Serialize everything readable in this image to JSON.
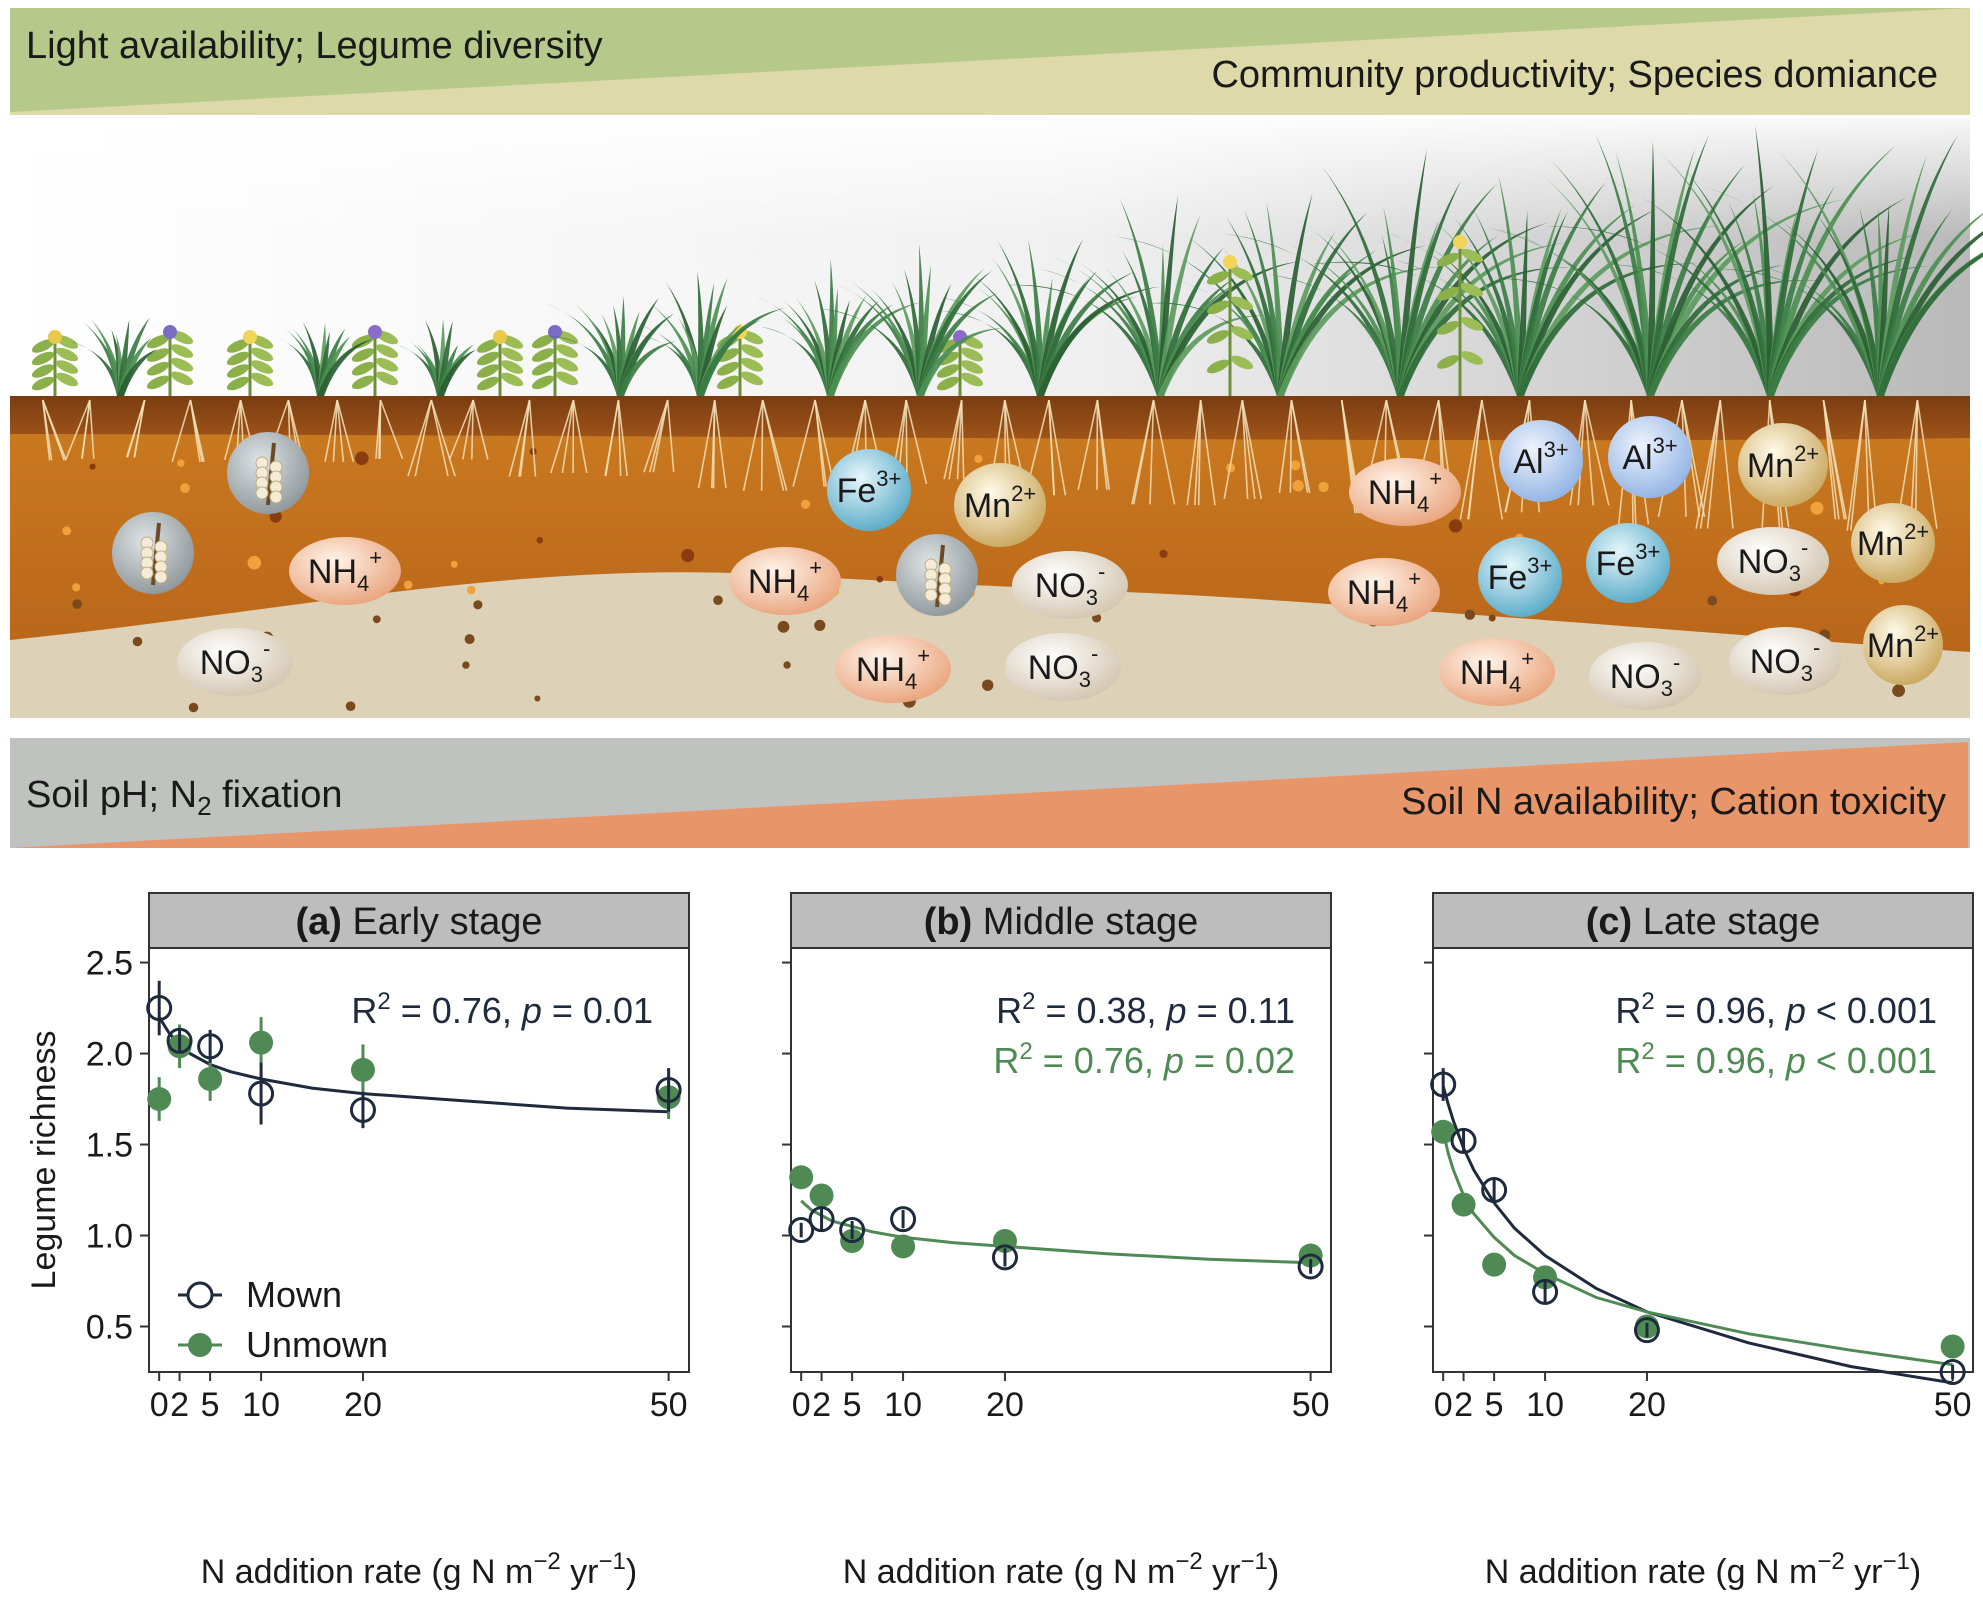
{
  "gradients": {
    "top_left_text": "Light availability; Legume diversity",
    "top_right_text": "Community productivity; Species domiance",
    "bottom_left_text_prefix": "Soil pH; N",
    "bottom_left_text_sub": "2",
    "bottom_left_text_suffix": " fixation",
    "bottom_right_text": "Soil N availability; Cation toxicity",
    "colors": {
      "top_green": "#b6c98a",
      "top_beige": "#ddd9a8",
      "bottom_gray": "#bfc2bf",
      "bottom_orange": "#e9956a"
    }
  },
  "ions": [
    {
      "base": "NH",
      "sub": "4",
      "sup": "+",
      "type": "nh4"
    },
    {
      "base": "NO",
      "sub": "3",
      "sup": "-",
      "type": "no3"
    },
    {
      "base": "Fe",
      "sub": "",
      "sup": "3+",
      "type": "fe"
    },
    {
      "base": "Mn",
      "sub": "",
      "sup": "2+",
      "type": "mn"
    },
    {
      "base": "NH",
      "sub": "4",
      "sup": "+",
      "type": "nh4"
    },
    {
      "base": "NO",
      "sub": "3",
      "sup": "-",
      "type": "no3"
    },
    {
      "base": "NH",
      "sub": "4",
      "sup": "+",
      "type": "nh4"
    },
    {
      "base": "NO",
      "sub": "3",
      "sup": "-",
      "type": "no3"
    },
    {
      "base": "NH",
      "sub": "4",
      "sup": "+",
      "type": "nh4"
    },
    {
      "base": "Al",
      "sub": "",
      "sup": "3+",
      "type": "al"
    },
    {
      "base": "Al",
      "sub": "",
      "sup": "3+",
      "type": "al"
    },
    {
      "base": "Mn",
      "sub": "",
      "sup": "2+",
      "type": "mn"
    },
    {
      "base": "NH",
      "sub": "4",
      "sup": "+",
      "type": "nh4"
    },
    {
      "base": "Fe",
      "sub": "",
      "sup": "3+",
      "type": "fe"
    },
    {
      "base": "Fe",
      "sub": "",
      "sup": "3+",
      "type": "fe"
    },
    {
      "base": "NO",
      "sub": "3",
      "sup": "-",
      "type": "no3"
    },
    {
      "base": "Mn",
      "sub": "",
      "sup": "2+",
      "type": "mn"
    },
    {
      "base": "NH",
      "sub": "4",
      "sup": "+",
      "type": "nh4"
    },
    {
      "base": "NO",
      "sub": "3",
      "sup": "-",
      "type": "no3"
    },
    {
      "base": "NO",
      "sub": "3",
      "sup": "-",
      "type": "no3"
    },
    {
      "base": "Mn",
      "sub": "",
      "sup": "2+",
      "type": "mn"
    }
  ],
  "chart_data": {
    "type": "scatter",
    "ylabel": "Legume richness",
    "xlabel_prefix": "N addition rate (g N m",
    "xlabel_sup1": "−2",
    "xlabel_mid": " yr",
    "xlabel_sup2": "−1",
    "xlabel_suffix": ")",
    "xlim": [
      -1,
      52
    ],
    "ylim": [
      0.25,
      2.58
    ],
    "x_ticks": [
      0,
      2,
      5,
      10,
      20,
      50
    ],
    "x_tick_labels": [
      "0",
      "2",
      "5",
      "10",
      "20",
      "50"
    ],
    "y_ticks": [
      0.5,
      1.0,
      1.5,
      2.0,
      2.5
    ],
    "y_tick_labels": [
      "0.5",
      "1.0",
      "1.5",
      "2.0",
      "2.5"
    ],
    "grid": false,
    "colors": {
      "mown": "#1f2a3d",
      "unmown": "#4f8a55"
    },
    "legend": {
      "placement": "bottom-left",
      "entries": [
        "Mown",
        "Unmown"
      ]
    },
    "panels": [
      {
        "letter": "(a)",
        "title": "Early stage",
        "stats": [
          {
            "series": "mown",
            "r2_prefix": "R",
            "r2_sup": "2",
            "r2_value": " = 0.76, ",
            "p_label": "p",
            "p_value": " = 0.01"
          }
        ],
        "series": [
          {
            "key": "mown",
            "x": [
              0,
              2,
              5,
              10,
              20,
              50
            ],
            "y": [
              2.25,
              2.07,
              2.04,
              1.78,
              1.69,
              1.8
            ],
            "err": [
              0.15,
              0.06,
              0.09,
              0.17,
              0.1,
              0.12
            ]
          },
          {
            "key": "unmown",
            "x": [
              0,
              2,
              5,
              10,
              20,
              50
            ],
            "y": [
              1.75,
              2.04,
              1.86,
              2.06,
              1.91,
              1.76
            ],
            "err": [
              0.12,
              0.12,
              0.12,
              0.14,
              0.14,
              0.12
            ]
          }
        ],
        "fits": [
          {
            "key": "mown",
            "x": [
              0,
              1,
              2,
              3,
              5,
              7,
              10,
              15,
              20,
              30,
              40,
              50
            ],
            "y": [
              2.2,
              2.11,
              2.05,
              2.0,
              1.94,
              1.9,
              1.86,
              1.81,
              1.78,
              1.74,
              1.7,
              1.68
            ]
          }
        ]
      },
      {
        "letter": "(b)",
        "title": "Middle stage",
        "stats": [
          {
            "series": "mown",
            "r2_prefix": "R",
            "r2_sup": "2",
            "r2_value": " = 0.38, ",
            "p_label": "p",
            "p_value": " = 0.11"
          },
          {
            "series": "unmown",
            "r2_prefix": "R",
            "r2_sup": "2",
            "r2_value": " = 0.76, ",
            "p_label": "p",
            "p_value": " = 0.02"
          }
        ],
        "series": [
          {
            "key": "mown",
            "x": [
              0,
              2,
              5,
              10,
              20,
              50
            ],
            "y": [
              1.03,
              1.09,
              1.03,
              1.09,
              0.88,
              0.83
            ],
            "err": [
              0.04,
              0.06,
              0.05,
              0.05,
              0.05,
              0.04
            ]
          },
          {
            "key": "unmown",
            "x": [
              0,
              2,
              5,
              10,
              20,
              50
            ],
            "y": [
              1.32,
              1.22,
              0.97,
              0.94,
              0.97,
              0.89
            ],
            "err": [
              0.03,
              0.04,
              0.04,
              0.04,
              0.03,
              0.03
            ]
          }
        ],
        "fits": [
          {
            "key": "unmown",
            "x": [
              0,
              1,
              2,
              3,
              5,
              7,
              10,
              15,
              20,
              30,
              40,
              50
            ],
            "y": [
              1.19,
              1.14,
              1.11,
              1.08,
              1.05,
              1.02,
              0.99,
              0.96,
              0.94,
              0.9,
              0.87,
              0.85
            ]
          }
        ]
      },
      {
        "letter": "(c)",
        "title": "Late stage",
        "stats": [
          {
            "series": "mown",
            "r2_prefix": "R",
            "r2_sup": "2",
            "r2_value": " = 0.96, ",
            "p_label": "p",
            "p_value": " < 0.001"
          },
          {
            "series": "unmown",
            "r2_prefix": "R",
            "r2_sup": "2",
            "r2_value": " = 0.96, ",
            "p_label": "p",
            "p_value": " < 0.001"
          }
        ],
        "series": [
          {
            "key": "mown",
            "x": [
              0,
              2,
              5,
              10,
              20,
              50
            ],
            "y": [
              1.83,
              1.52,
              1.25,
              0.69,
              0.48,
              0.25
            ],
            "err": [
              0.09,
              0.06,
              0.07,
              0.06,
              0.04,
              0.04
            ]
          },
          {
            "key": "unmown",
            "x": [
              0,
              2,
              5,
              10,
              20,
              50
            ],
            "y": [
              1.57,
              1.17,
              0.84,
              0.77,
              0.5,
              0.39
            ],
            "err": [
              0.03,
              0.04,
              0.03,
              0.04,
              0.03,
              0.03
            ]
          }
        ],
        "fits": [
          {
            "key": "mown",
            "x": [
              0,
              0.5,
              1,
              2,
              3,
              5,
              7,
              10,
              15,
              20,
              30,
              40,
              50
            ],
            "y": [
              1.82,
              1.72,
              1.63,
              1.48,
              1.36,
              1.18,
              1.04,
              0.89,
              0.71,
              0.58,
              0.41,
              0.28,
              0.19
            ]
          },
          {
            "key": "unmown",
            "x": [
              0,
              0.5,
              1,
              2,
              3,
              5,
              7,
              10,
              15,
              20,
              30,
              40,
              50
            ],
            "y": [
              1.57,
              1.45,
              1.36,
              1.22,
              1.12,
              0.99,
              0.89,
              0.79,
              0.66,
              0.58,
              0.46,
              0.37,
              0.29
            ]
          }
        ]
      }
    ]
  }
}
